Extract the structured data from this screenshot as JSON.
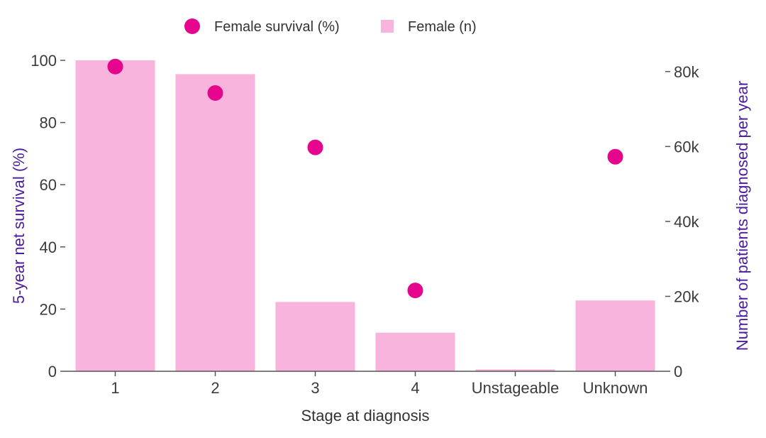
{
  "chart_data": {
    "type": "bar",
    "categories": [
      "1",
      "2",
      "3",
      "4",
      "Unstageable",
      "Unknown"
    ],
    "xlabel": "Stage at diagnosis",
    "ylabel": "5-year net survival (%)",
    "y2label": "Number of patients diagnosed per year",
    "ylim": [
      0,
      100
    ],
    "y2lim": [
      0,
      83000
    ],
    "y_ticks": [
      0,
      20,
      40,
      60,
      80,
      100
    ],
    "y2_ticks": [
      0,
      20000,
      40000,
      60000,
      80000
    ],
    "y2_tick_labels": [
      "0",
      "20k",
      "40k",
      "60k",
      "80k"
    ],
    "grid": false,
    "legend": "top-center",
    "series": [
      {
        "name": "Female survival (%)",
        "type": "scatter",
        "axis": "left",
        "color": "#e6068e",
        "values": [
          98,
          89.5,
          72,
          26,
          null,
          69
        ]
      },
      {
        "name": "Female (n)",
        "type": "bar",
        "axis": "right",
        "color": "#f8b4dd",
        "values": [
          83000,
          79300,
          18500,
          10300,
          500,
          18900
        ]
      }
    ]
  },
  "colors": {
    "axis_title": "#4b1c9c",
    "tick_text": "#3b3b3b",
    "axis_line": "#555555"
  }
}
